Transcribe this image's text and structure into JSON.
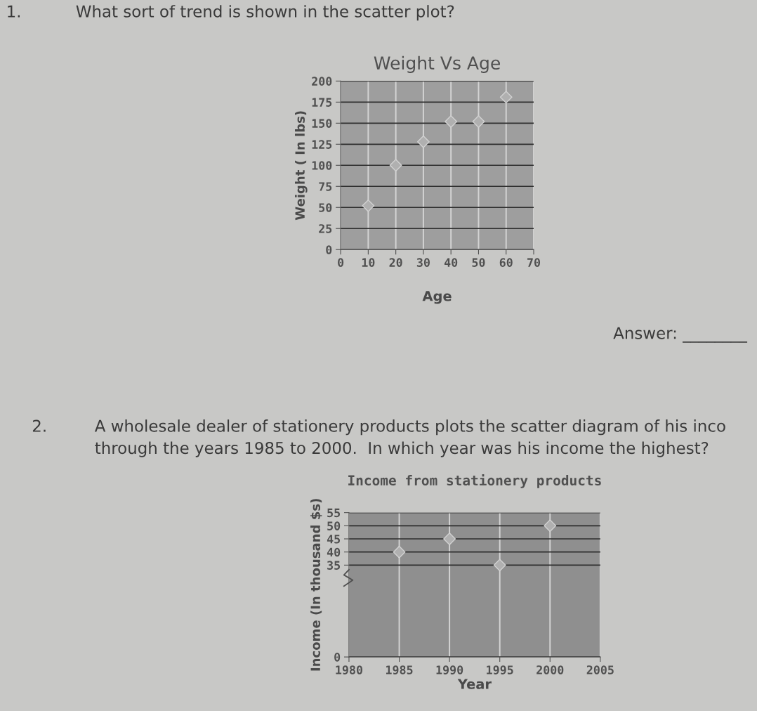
{
  "chart_data": [
    {
      "type": "scatter",
      "title": "Weight Vs Age",
      "xlabel": "Age",
      "ylabel": "Weight ( In lbs)",
      "x": [
        10,
        20,
        30,
        40,
        50,
        60
      ],
      "values": [
        52,
        100,
        128,
        152,
        152,
        181
      ],
      "color": "#b0b0b0",
      "marker": "diamond",
      "xlim": [
        0,
        70
      ],
      "xticks": [
        0,
        10,
        20,
        30,
        40,
        50,
        60,
        70
      ],
      "ylim": [
        0,
        200
      ],
      "yticks": [
        0,
        25,
        50,
        75,
        100,
        125,
        150,
        175,
        200
      ],
      "grid": true,
      "annotations": [
        "1.",
        "What sort of trend is shown in the scatter plot?",
        "Answer: ________"
      ]
    },
    {
      "type": "scatter",
      "title": "Income from stationery products",
      "xlabel": "Year",
      "ylabel": "Income (In thousand $s)",
      "x": [
        1985,
        1990,
        1995,
        2000
      ],
      "values": [
        40,
        45,
        35,
        50
      ],
      "color": "#b0b0b0",
      "marker": "diamond",
      "xlim": [
        1980,
        2005
      ],
      "xticks": [
        1980,
        1985,
        1990,
        1995,
        2000,
        2005
      ],
      "ylim": [
        0,
        55
      ],
      "yticks": [
        0,
        35,
        40,
        45,
        50,
        55
      ],
      "grid": true,
      "annotations": [
        "2.",
        "A wholesale dealer of stationery products plots the scatter diagram of his inco",
        "through the years 1985 to 2000.  In which year was his income the highest?"
      ]
    }
  ]
}
